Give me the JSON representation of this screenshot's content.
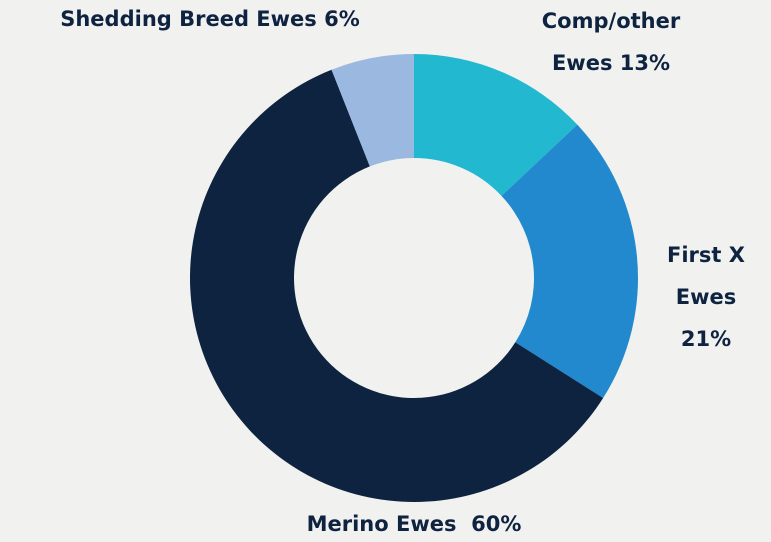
{
  "chart_data": {
    "type": "donut",
    "categories": [
      "Comp/other Ewes",
      "First X Ewes",
      "Merino Ewes ",
      "Shedding Breed Ewes"
    ],
    "values": [
      13,
      21,
      60,
      6
    ],
    "value_labels": [
      "13%",
      "21%",
      "60%",
      "6%"
    ],
    "colors": [
      "#22b9d0",
      "#2389cf",
      "#0d2340",
      "#9ab8e0"
    ]
  }
}
